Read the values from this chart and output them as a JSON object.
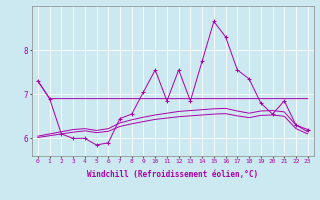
{
  "xlabel": "Windchill (Refroidissement éolien,°C)",
  "background_color": "#cce8f0",
  "grid_color": "#ffffff",
  "line_color": "#aa00aa",
  "x_values": [
    0,
    1,
    2,
    3,
    4,
    5,
    6,
    7,
    8,
    9,
    10,
    11,
    12,
    13,
    14,
    15,
    16,
    17,
    18,
    19,
    20,
    21,
    22,
    23
  ],
  "series_flat": [
    7.3,
    6.9,
    6.9,
    6.9,
    6.9,
    6.9,
    6.9,
    6.9,
    6.9,
    6.9,
    6.9,
    6.9,
    6.9,
    6.9,
    6.9,
    6.9,
    6.9,
    6.9,
    6.9,
    6.9,
    6.9,
    6.9,
    6.9,
    6.9
  ],
  "series_main": [
    7.3,
    6.9,
    6.1,
    6.0,
    6.0,
    5.85,
    5.9,
    6.45,
    6.55,
    7.05,
    7.55,
    6.85,
    7.55,
    6.85,
    7.75,
    8.65,
    8.3,
    7.55,
    7.35,
    6.8,
    6.55,
    6.85,
    6.3,
    6.2
  ],
  "trend_upper": [
    6.05,
    6.1,
    6.15,
    6.2,
    6.22,
    6.18,
    6.22,
    6.35,
    6.42,
    6.48,
    6.53,
    6.57,
    6.61,
    6.63,
    6.65,
    6.67,
    6.68,
    6.62,
    6.57,
    6.62,
    6.63,
    6.6,
    6.3,
    6.15
  ],
  "trend_lower": [
    6.02,
    6.06,
    6.1,
    6.14,
    6.17,
    6.13,
    6.16,
    6.27,
    6.33,
    6.38,
    6.43,
    6.46,
    6.49,
    6.51,
    6.53,
    6.55,
    6.56,
    6.51,
    6.47,
    6.52,
    6.53,
    6.5,
    6.22,
    6.1
  ],
  "ylim": [
    5.6,
    9.0
  ],
  "yticks": [
    6,
    7,
    8
  ],
  "xticks": [
    0,
    1,
    2,
    3,
    4,
    5,
    6,
    7,
    8,
    9,
    10,
    11,
    12,
    13,
    14,
    15,
    16,
    17,
    18,
    19,
    20,
    21,
    22,
    23
  ],
  "tick_fontsize": 4.5,
  "xlabel_fontsize": 5.5
}
